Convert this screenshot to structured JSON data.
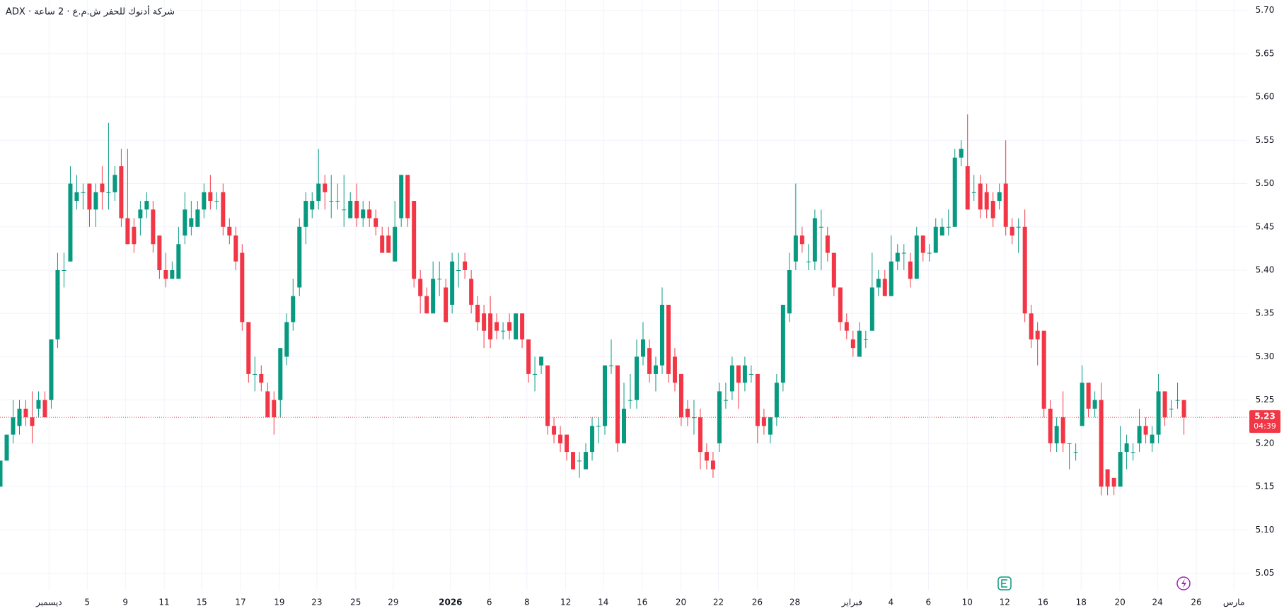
{
  "chart_data": {
    "type": "candlestick",
    "title": "ADX · شركة أدنوك للحفر ش.م.ع · 2 ساعة",
    "up_color": "#089981",
    "down_color": "#f23645",
    "grid": true,
    "last_price": 5.23,
    "countdown": "04:39",
    "ylim": [
      5.03,
      5.712
    ],
    "yticks": [
      5.05,
      {
        "value": 5.1,
        "label": "5.10"
      },
      5.15,
      {
        "value": 5.2,
        "label": "5.20"
      },
      5.25,
      {
        "value": 5.3,
        "label": "5.30"
      },
      5.35,
      {
        "value": 5.4,
        "label": "5.40"
      },
      5.45,
      {
        "value": 5.5,
        "label": "5.50"
      },
      5.55,
      {
        "value": 5.6,
        "label": "5.60"
      },
      5.65,
      {
        "value": 5.7,
        "label": "5.70"
      }
    ],
    "xlim": [
      0,
      196
    ],
    "xticks": [
      {
        "value": 7.7,
        "label": "ديسمبر"
      },
      {
        "value": 13.7,
        "label": "5"
      },
      {
        "value": 19.7,
        "label": "9"
      },
      {
        "value": 25.8,
        "label": "11"
      },
      {
        "value": 31.7,
        "label": "15"
      },
      {
        "value": 37.8,
        "label": "17"
      },
      {
        "value": 43.9,
        "label": "19"
      },
      {
        "value": 49.8,
        "label": "23"
      },
      {
        "value": 55.9,
        "label": "25"
      },
      {
        "value": 61.8,
        "label": "29"
      },
      {
        "value": 70.8,
        "label": "2026"
      },
      {
        "value": 76.9,
        "label": "6"
      },
      {
        "value": 82.8,
        "label": "8"
      },
      {
        "value": 88.9,
        "label": "12"
      },
      {
        "value": 94.8,
        "label": "14"
      },
      {
        "value": 100.9,
        "label": "16"
      },
      {
        "value": 107,
        "label": "20"
      },
      {
        "value": 112.9,
        "label": "22"
      },
      {
        "value": 119,
        "label": "26"
      },
      {
        "value": 124.9,
        "label": "28"
      },
      {
        "value": 133.9,
        "label": "فبراير"
      },
      {
        "value": 140,
        "label": "4"
      },
      {
        "value": 145.9,
        "label": "6"
      },
      {
        "value": 152,
        "label": "10"
      },
      {
        "value": 157.9,
        "label": "12"
      },
      {
        "value": 163.9,
        "label": "16"
      },
      {
        "value": 169.9,
        "label": "18"
      },
      {
        "value": 176,
        "label": "20"
      },
      {
        "value": 181.9,
        "label": "24"
      },
      {
        "value": 188,
        "label": "26"
      },
      {
        "value": 193.9,
        "label": "مارس"
      }
    ],
    "open": [
      5.15,
      5.18,
      5.21,
      5.22,
      5.24,
      5.23,
      5.24,
      5.25,
      5.25,
      5.32,
      5.4,
      5.41,
      5.48,
      5.49,
      5.5,
      5.47,
      5.5,
      5.49,
      5.49,
      5.52,
      5.46,
      5.45,
      5.46,
      5.47,
      5.47,
      5.44,
      5.4,
      5.39,
      5.39,
      5.44,
      5.45,
      5.45,
      5.47,
      5.49,
      5.48,
      5.49,
      5.45,
      5.44,
      5.42,
      5.34,
      5.28,
      5.28,
      5.26,
      5.25,
      5.25,
      5.3,
      5.34,
      5.38,
      5.45,
      5.47,
      5.48,
      5.5,
      5.48,
      5.48,
      5.47,
      5.46,
      5.48,
      5.46,
      5.47,
      5.46,
      5.44,
      5.44,
      5.41,
      5.46,
      5.51,
      5.48,
      5.39,
      5.37,
      5.35,
      5.39,
      5.38,
      5.36,
      5.4,
      5.41,
      5.39,
      5.36,
      5.35,
      5.35,
      5.34,
      5.33,
      5.34,
      5.32,
      5.35,
      5.32,
      5.28,
      5.29,
      5.29,
      5.22,
      5.21,
      5.21,
      5.19,
      5.18,
      5.17,
      5.19,
      5.22,
      5.22,
      5.29,
      5.29,
      5.2,
      5.25,
      5.25,
      5.3,
      5.31,
      5.28,
      5.29,
      5.36,
      5.3,
      5.28,
      5.24,
      5.23,
      5.23,
      5.19,
      5.18,
      5.2,
      5.25,
      5.26,
      5.29,
      5.27,
      5.28,
      5.28,
      5.23,
      5.21,
      5.23,
      5.27,
      5.35,
      5.41,
      5.44,
      5.41,
      5.41,
      5.45,
      5.44,
      5.42,
      5.38,
      5.34,
      5.32,
      5.3,
      5.32,
      5.33,
      5.38,
      5.39,
      5.37,
      5.41,
      5.42,
      5.41,
      5.39,
      5.44,
      5.42,
      5.42,
      5.44,
      5.45,
      5.45,
      5.53,
      5.52,
      5.49,
      5.5,
      5.49,
      5.48,
      5.48,
      5.5,
      5.45,
      5.45,
      5.45,
      5.35,
      5.33,
      5.33,
      5.24,
      5.2,
      5.23,
      5.2,
      5.19,
      5.22,
      5.27,
      5.24,
      5.25,
      5.17,
      5.16,
      5.15,
      5.19,
      5.19,
      5.2,
      5.22,
      5.2,
      5.21,
      5.26,
      5.24,
      5.25,
      5.25
    ],
    "high": [
      5.18,
      5.21,
      5.25,
      5.25,
      5.25,
      5.26,
      5.26,
      5.26,
      5.32,
      5.42,
      5.42,
      5.52,
      5.51,
      5.5,
      5.5,
      5.5,
      5.52,
      5.57,
      5.52,
      5.54,
      5.54,
      5.46,
      5.48,
      5.49,
      5.48,
      5.44,
      5.42,
      5.41,
      5.45,
      5.49,
      5.48,
      5.48,
      5.5,
      5.51,
      5.49,
      5.5,
      5.46,
      5.45,
      5.43,
      5.34,
      5.3,
      5.29,
      5.27,
      5.26,
      5.31,
      5.35,
      5.39,
      5.46,
      5.49,
      5.49,
      5.54,
      5.51,
      5.51,
      5.5,
      5.51,
      5.49,
      5.5,
      5.48,
      5.48,
      5.47,
      5.45,
      5.45,
      5.48,
      5.51,
      5.51,
      5.48,
      5.4,
      5.38,
      5.41,
      5.41,
      5.39,
      5.42,
      5.42,
      5.42,
      5.4,
      5.37,
      5.36,
      5.37,
      5.35,
      5.34,
      5.35,
      5.35,
      5.35,
      5.32,
      5.3,
      5.3,
      5.29,
      5.23,
      5.22,
      5.21,
      5.19,
      5.19,
      5.2,
      5.23,
      5.23,
      5.29,
      5.32,
      5.29,
      5.27,
      5.28,
      5.32,
      5.34,
      5.32,
      5.3,
      5.38,
      5.36,
      5.31,
      5.28,
      5.25,
      5.25,
      5.24,
      5.2,
      5.19,
      5.27,
      5.27,
      5.3,
      5.29,
      5.3,
      5.29,
      5.28,
      5.24,
      5.23,
      5.28,
      5.36,
      5.42,
      5.5,
      5.45,
      5.43,
      5.47,
      5.47,
      5.45,
      5.42,
      5.38,
      5.35,
      5.33,
      5.34,
      5.33,
      5.42,
      5.4,
      5.4,
      5.44,
      5.43,
      5.43,
      5.42,
      5.45,
      5.44,
      5.43,
      5.46,
      5.46,
      5.47,
      5.54,
      5.55,
      5.58,
      5.51,
      5.51,
      5.5,
      5.49,
      5.5,
      5.55,
      5.46,
      5.46,
      5.47,
      5.36,
      5.34,
      5.33,
      5.25,
      5.23,
      5.26,
      5.2,
      5.2,
      5.29,
      5.27,
      5.26,
      5.27,
      5.17,
      5.16,
      5.22,
      5.21,
      5.2,
      5.24,
      5.23,
      5.22,
      5.28,
      5.26,
      5.25,
      5.27,
      5.25
    ],
    "low": [
      5.15,
      5.18,
      5.2,
      5.21,
      5.22,
      5.2,
      5.23,
      5.23,
      5.24,
      5.31,
      5.38,
      5.41,
      5.47,
      5.47,
      5.45,
      5.45,
      5.47,
      5.47,
      5.48,
      5.45,
      5.43,
      5.42,
      5.44,
      5.46,
      5.42,
      5.39,
      5.38,
      5.39,
      5.39,
      5.43,
      5.44,
      5.45,
      5.46,
      5.47,
      5.47,
      5.44,
      5.43,
      5.4,
      5.33,
      5.27,
      5.26,
      5.26,
      5.23,
      5.21,
      5.23,
      5.29,
      5.33,
      5.37,
      5.43,
      5.46,
      5.47,
      5.47,
      5.46,
      5.47,
      5.45,
      5.46,
      5.45,
      5.45,
      5.45,
      5.44,
      5.42,
      5.42,
      5.41,
      5.45,
      5.45,
      5.38,
      5.35,
      5.35,
      5.35,
      5.37,
      5.34,
      5.35,
      5.38,
      5.39,
      5.35,
      5.33,
      5.31,
      5.31,
      5.32,
      5.32,
      5.32,
      5.32,
      5.31,
      5.27,
      5.26,
      5.28,
      5.21,
      5.2,
      5.19,
      5.18,
      5.17,
      5.16,
      5.17,
      5.18,
      5.2,
      5.21,
      5.28,
      5.19,
      5.2,
      5.24,
      5.24,
      5.29,
      5.27,
      5.26,
      5.28,
      5.27,
      5.26,
      5.22,
      5.22,
      5.21,
      5.17,
      5.17,
      5.16,
      5.19,
      5.24,
      5.25,
      5.24,
      5.26,
      5.27,
      5.2,
      5.21,
      5.2,
      5.22,
      5.26,
      5.34,
      5.4,
      5.42,
      5.4,
      5.4,
      5.4,
      5.41,
      5.37,
      5.33,
      5.32,
      5.3,
      5.3,
      5.31,
      5.33,
      5.37,
      5.37,
      5.37,
      5.4,
      5.4,
      5.38,
      5.39,
      5.41,
      5.41,
      5.42,
      5.44,
      5.44,
      5.45,
      5.52,
      5.47,
      5.48,
      5.46,
      5.46,
      5.45,
      5.47,
      5.44,
      5.43,
      5.42,
      5.34,
      5.31,
      5.29,
      5.23,
      5.19,
      5.19,
      5.19,
      5.17,
      5.18,
      5.22,
      5.23,
      5.23,
      5.14,
      5.14,
      5.14,
      5.15,
      5.17,
      5.18,
      5.19,
      5.2,
      5.19,
      5.2,
      5.22,
      5.23,
      5.24,
      5.21
    ],
    "close": [
      5.18,
      5.21,
      5.23,
      5.24,
      5.23,
      5.22,
      5.25,
      5.23,
      5.32,
      5.4,
      5.4,
      5.5,
      5.49,
      5.49,
      5.47,
      5.49,
      5.49,
      5.49,
      5.51,
      5.46,
      5.43,
      5.43,
      5.47,
      5.48,
      5.43,
      5.4,
      5.39,
      5.4,
      5.43,
      5.47,
      5.46,
      5.47,
      5.49,
      5.48,
      5.48,
      5.45,
      5.44,
      5.41,
      5.34,
      5.28,
      5.28,
      5.27,
      5.23,
      5.23,
      5.31,
      5.34,
      5.37,
      5.45,
      5.48,
      5.48,
      5.5,
      5.49,
      5.48,
      5.48,
      5.47,
      5.48,
      5.46,
      5.47,
      5.46,
      5.45,
      5.42,
      5.42,
      5.45,
      5.51,
      5.46,
      5.39,
      5.37,
      5.35,
      5.39,
      5.39,
      5.34,
      5.41,
      5.4,
      5.4,
      5.36,
      5.34,
      5.33,
      5.32,
      5.33,
      5.33,
      5.33,
      5.35,
      5.32,
      5.28,
      5.28,
      5.3,
      5.22,
      5.21,
      5.2,
      5.19,
      5.17,
      5.18,
      5.19,
      5.22,
      5.22,
      5.29,
      5.29,
      5.2,
      5.24,
      5.25,
      5.3,
      5.32,
      5.28,
      5.29,
      5.36,
      5.28,
      5.27,
      5.23,
      5.23,
      5.23,
      5.19,
      5.18,
      5.17,
      5.26,
      5.25,
      5.29,
      5.27,
      5.29,
      5.28,
      5.22,
      5.22,
      5.23,
      5.27,
      5.36,
      5.4,
      5.44,
      5.43,
      5.41,
      5.46,
      5.45,
      5.42,
      5.38,
      5.34,
      5.33,
      5.31,
      5.33,
      5.32,
      5.38,
      5.39,
      5.37,
      5.41,
      5.42,
      5.42,
      5.39,
      5.44,
      5.42,
      5.42,
      5.45,
      5.45,
      5.45,
      5.53,
      5.54,
      5.47,
      5.49,
      5.47,
      5.47,
      5.46,
      5.49,
      5.45,
      5.44,
      5.45,
      5.35,
      5.32,
      5.32,
      5.24,
      5.2,
      5.22,
      5.2,
      5.2,
      5.19,
      5.27,
      5.24,
      5.25,
      5.15,
      5.15,
      5.15,
      5.19,
      5.2,
      5.19,
      5.22,
      5.21,
      5.21,
      5.26,
      5.23,
      5.24,
      5.25,
      5.23
    ]
  }
}
